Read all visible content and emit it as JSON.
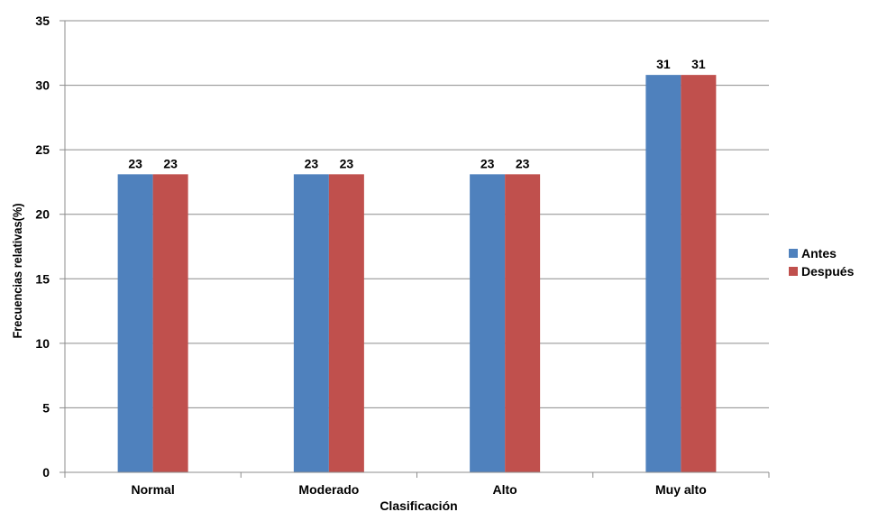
{
  "chart_data": {
    "type": "bar",
    "title": "",
    "xlabel": "Clasificación",
    "ylabel": "Frecuencias relativas(%)",
    "categories": [
      "Normal",
      "Moderado",
      "Alto",
      "Muy alto"
    ],
    "series": [
      {
        "name": "Antes",
        "values": [
          23.1,
          23.1,
          23.1,
          30.8
        ],
        "labels": [
          "23",
          "23",
          "23",
          "31"
        ],
        "color": "#4F81BD"
      },
      {
        "name": "Después",
        "values": [
          23.1,
          23.1,
          23.1,
          30.8
        ],
        "labels": [
          "23",
          "23",
          "23",
          "31"
        ],
        "color": "#C0504D"
      }
    ],
    "ylim": [
      0,
      35
    ],
    "yticks": [
      0,
      5,
      10,
      15,
      20,
      25,
      30,
      35
    ],
    "grid": true,
    "legend_position": "right"
  }
}
